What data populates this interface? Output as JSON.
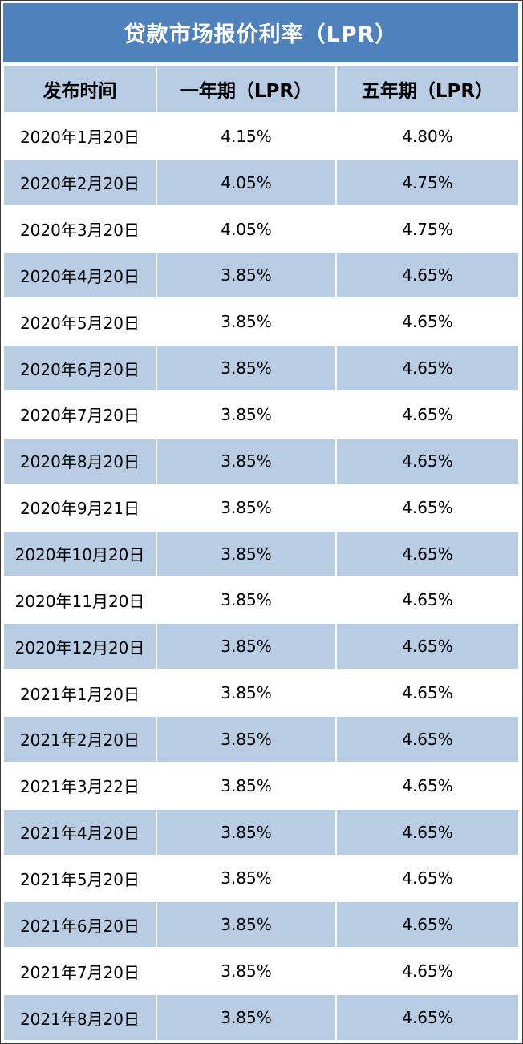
{
  "title": "贷款市场报价利率（LPR）",
  "headers": [
    "发布时间",
    "一年期（LPR）",
    "五年期（LPR）"
  ],
  "rows": [
    [
      "2020年1月20日",
      "4.15%",
      "4.80%"
    ],
    [
      "2020年2月20日",
      "4.05%",
      "4.75%"
    ],
    [
      "2020年3月20日",
      "4.05%",
      "4.75%"
    ],
    [
      "2020年4月20日",
      "3.85%",
      "4.65%"
    ],
    [
      "2020年5月20日",
      "3.85%",
      "4.65%"
    ],
    [
      "2020年6月20日",
      "3.85%",
      "4.65%"
    ],
    [
      "2020年7月20日",
      "3.85%",
      "4.65%"
    ],
    [
      "2020年8月20日",
      "3.85%",
      "4.65%"
    ],
    [
      "2020年9月21日",
      "3.85%",
      "4.65%"
    ],
    [
      "2020年10月20日",
      "3.85%",
      "4.65%"
    ],
    [
      "2020年11月20日",
      "3.85%",
      "4.65%"
    ],
    [
      "2020年12月20日",
      "3.85%",
      "4.65%"
    ],
    [
      "2021年1月20日",
      "3.85%",
      "4.65%"
    ],
    [
      "2021年2月20日",
      "3.85%",
      "4.65%"
    ],
    [
      "2021年3月22日",
      "3.85%",
      "4.65%"
    ],
    [
      "2021年4月20日",
      "3.85%",
      "4.65%"
    ],
    [
      "2021年5月20日",
      "3.85%",
      "4.65%"
    ],
    [
      "2021年6月20日",
      "3.85%",
      "4.65%"
    ],
    [
      "2021年7月20日",
      "3.85%",
      "4.65%"
    ],
    [
      "2021年8月20日",
      "3.85%",
      "4.65%"
    ]
  ],
  "colors": {
    "title_bg": "#4f81bd",
    "title_text": "#ffffff",
    "header_bg": "#b8cce4",
    "row_alt_bg": "#b8cce4",
    "row_bg": "#ffffff"
  }
}
